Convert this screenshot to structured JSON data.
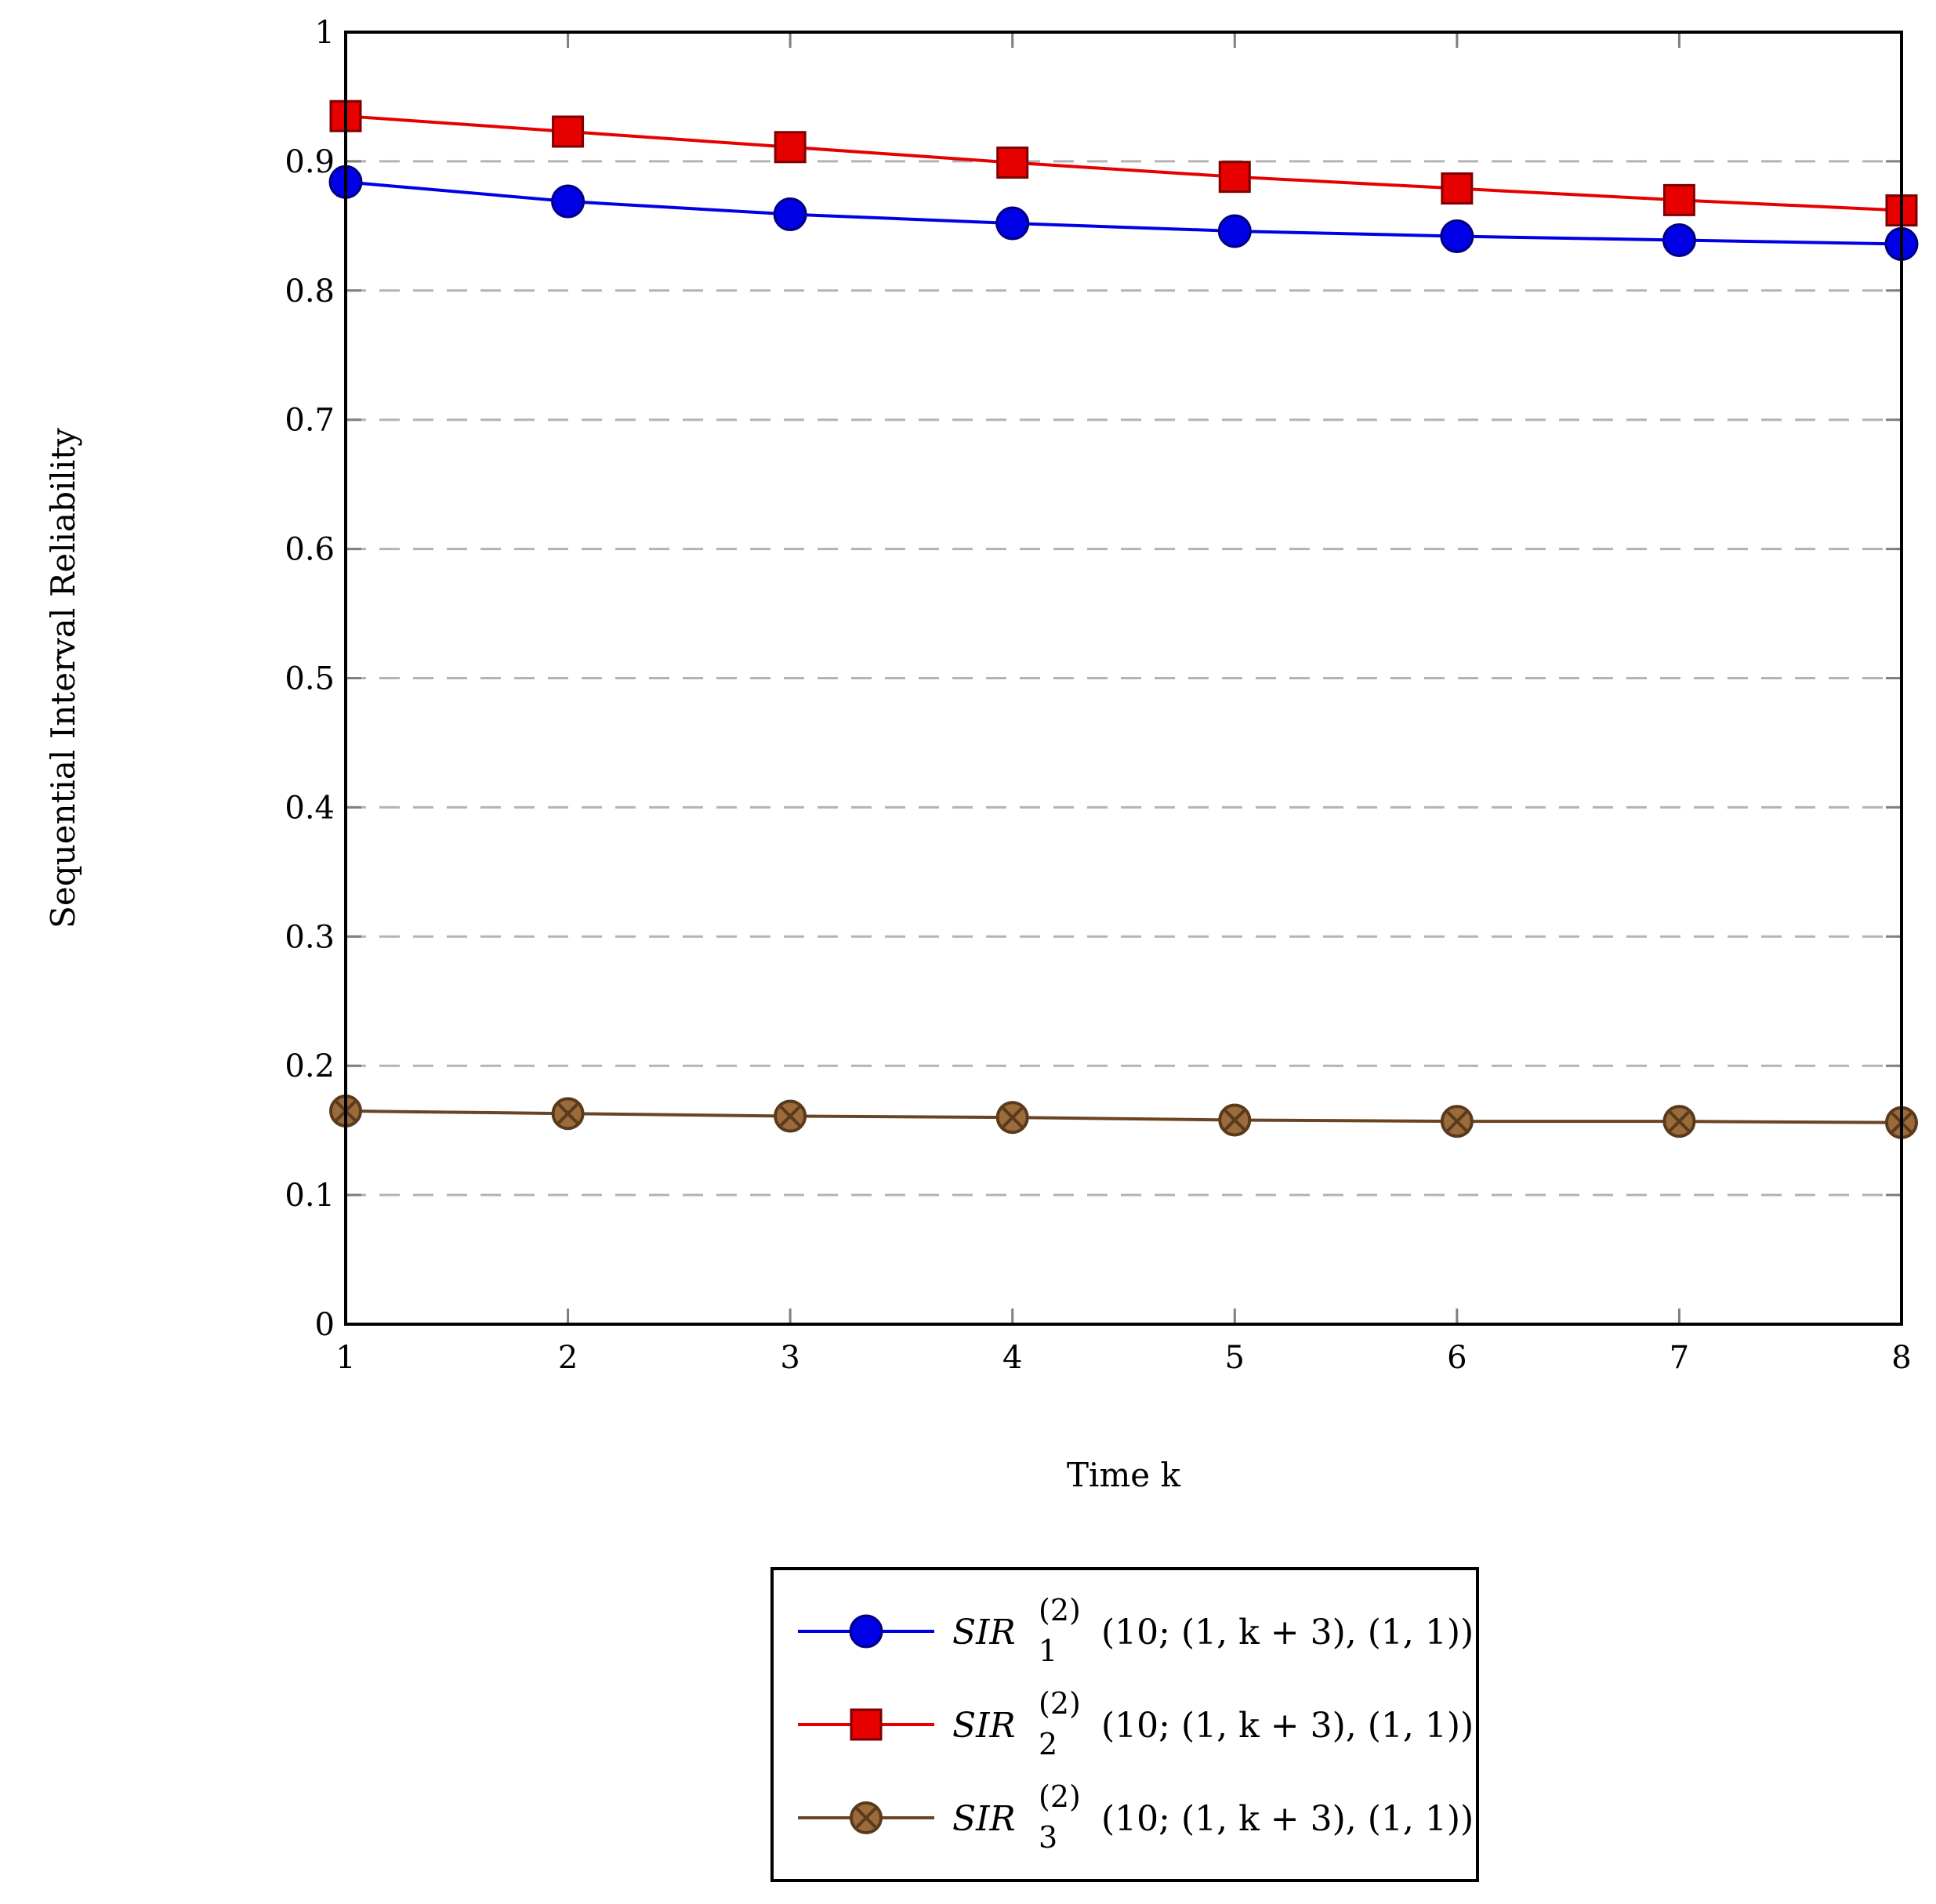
{
  "chart_data": {
    "type": "line",
    "title": "",
    "xlabel": "Time k",
    "ylabel": "Sequential Interval Reliability",
    "x": [
      1,
      2,
      3,
      4,
      5,
      6,
      7,
      8
    ],
    "xlim": [
      1,
      8
    ],
    "ylim": [
      0,
      1
    ],
    "xticks": [
      "1",
      "2",
      "3",
      "4",
      "5",
      "6",
      "7",
      "8"
    ],
    "yticks": [
      "0",
      "0.1",
      "0.2",
      "0.3",
      "0.4",
      "0.5",
      "0.6",
      "0.7",
      "0.8",
      "0.9",
      "1"
    ],
    "grid": "horizontal dashed",
    "legend_position": "bottom-center",
    "series": [
      {
        "name": "SIR_1^(2)(10;(1,k+3),(1,1))",
        "name_parts": {
          "base": "SIR",
          "sub": "1",
          "sup": "(2)",
          "args": "(10; (1, k + 3), (1, 1))"
        },
        "color": "#0000e6",
        "marker": "circle",
        "values": [
          0.884,
          0.869,
          0.859,
          0.852,
          0.846,
          0.842,
          0.839,
          0.836
        ]
      },
      {
        "name": "SIR_2^(2)(10;(1,k+3),(1,1))",
        "name_parts": {
          "base": "SIR",
          "sub": "2",
          "sup": "(2)",
          "args": "(10; (1, k + 3), (1, 1))"
        },
        "color": "#e60000",
        "marker": "square",
        "values": [
          0.935,
          0.923,
          0.911,
          0.899,
          0.888,
          0.879,
          0.87,
          0.862
        ]
      },
      {
        "name": "SIR_3^(2)(10;(1,k+3),(1,1))",
        "name_parts": {
          "base": "SIR",
          "sub": "3",
          "sup": "(2)",
          "args": "(10; (1, k + 3), (1, 1))"
        },
        "color": "#6b4423",
        "marker": "otimes",
        "values": [
          0.165,
          0.163,
          0.161,
          0.16,
          0.158,
          0.157,
          0.157,
          0.156
        ]
      }
    ]
  }
}
